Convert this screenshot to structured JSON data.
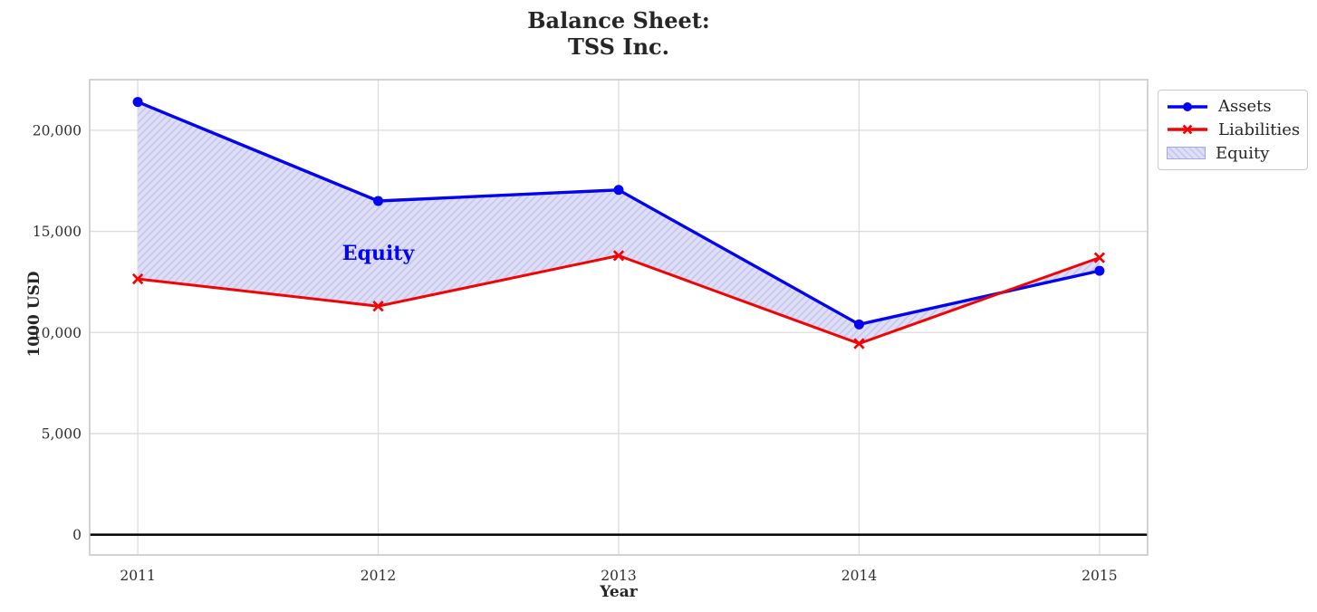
{
  "figure": {
    "background": "#ffffff"
  },
  "chart_data": {
    "type": "line",
    "title_lines": [
      "Balance Sheet:",
      "TSS Inc."
    ],
    "xlabel": "Year",
    "ylabel": "1000 USD",
    "categories": [
      "2011",
      "2012",
      "2013",
      "2014",
      "2015"
    ],
    "x": [
      2011,
      2012,
      2013,
      2014,
      2015
    ],
    "series": [
      {
        "name": "Assets",
        "color": "#0404f0",
        "marker": "circle",
        "line_width": 3.4,
        "values": [
          21400,
          16500,
          17050,
          10400,
          13050
        ]
      },
      {
        "name": "Liabilities",
        "color": "#f00404",
        "marker": "x",
        "line_width": 3.0,
        "values": [
          12650,
          11300,
          13800,
          9450,
          13700
        ]
      }
    ],
    "fill_between": {
      "label": "Equity",
      "face_color": "#dedef6",
      "hatch_color": "#c7c7ee",
      "edge_color": "#a6a6e6",
      "hatch_style": "/",
      "annotation": {
        "text": "Equity",
        "x": 2012,
        "y": 13900,
        "color": "#0404f0"
      }
    },
    "yticks": [
      0,
      5000,
      10000,
      15000,
      20000
    ],
    "ytick_labels": [
      "0",
      "5,000",
      "10,000",
      "15,000",
      "20,000"
    ],
    "ylim": [
      -1000,
      22500
    ],
    "xlim": [
      2010.8,
      2015.2
    ],
    "zero_line": true,
    "zero_line_color": "#000000",
    "grid": true,
    "grid_color": "#dcdcdc",
    "spine_color": "#c8c8c8",
    "legend": {
      "position": "outside-top-right",
      "entries": [
        "Assets",
        "Liabilities",
        "Equity"
      ]
    }
  }
}
